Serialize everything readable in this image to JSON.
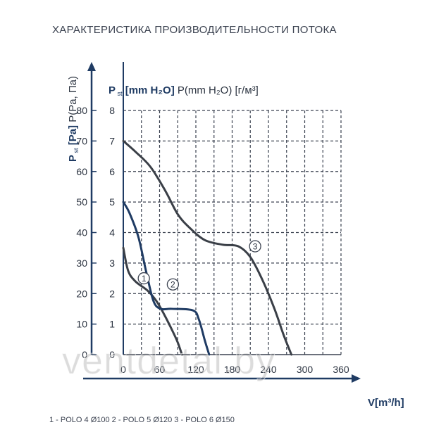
{
  "chart_data": {
    "type": "line",
    "title": "ХАРАКТЕРИСТИКА ПРОИЗВОДИТЕЛЬНОСТИ ПОТОКА",
    "xlabel": "V[m³/h]",
    "ylabel_pa_main": "P",
    "ylabel_pa_sub": "st",
    "ylabel_pa_unit": "[Pa]",
    "ylabel_pa_extra": "P(Pa, Па)",
    "ylabel_mm_main": "P",
    "ylabel_mm_sub": "st",
    "ylabel_mm_unit": "[mm H₂O]",
    "ylabel_mm_extra": "P(mm H₂O) [г/м³]",
    "xlim": [
      0,
      360
    ],
    "ylim_pa": [
      0,
      80
    ],
    "ylim_mm": [
      0,
      8
    ],
    "x_ticks": [
      "0",
      "60",
      "120",
      "180",
      "240",
      "300",
      "360"
    ],
    "y_ticks_pa": [
      "0",
      "10",
      "20",
      "30",
      "40",
      "50",
      "60",
      "70",
      "80"
    ],
    "y_ticks_mm": [
      "0",
      "1",
      "2",
      "3",
      "4",
      "5",
      "6",
      "7",
      "8"
    ],
    "grid": "dashed",
    "series": [
      {
        "marker": "1",
        "color": "#3a3f47",
        "points": [
          [
            0,
            3.5
          ],
          [
            8,
            2.75
          ],
          [
            20,
            2.4
          ],
          [
            40,
            2.1
          ],
          [
            55,
            1.75
          ],
          [
            68,
            1.3
          ],
          [
            82,
            0.75
          ],
          [
            90,
            0.4
          ],
          [
            97,
            0.0
          ]
        ]
      },
      {
        "marker": "2",
        "color": "#1f3b63",
        "points": [
          [
            0,
            5.0
          ],
          [
            10,
            4.65
          ],
          [
            25,
            3.85
          ],
          [
            38,
            2.7
          ],
          [
            50,
            1.75
          ],
          [
            62,
            1.5
          ],
          [
            80,
            1.5
          ],
          [
            115,
            1.45
          ],
          [
            125,
            1.15
          ],
          [
            135,
            0.45
          ],
          [
            142,
            0.0
          ]
        ]
      },
      {
        "marker": "3",
        "color": "#3a3f47",
        "points": [
          [
            0,
            7.0
          ],
          [
            20,
            6.65
          ],
          [
            45,
            6.15
          ],
          [
            70,
            5.35
          ],
          [
            90,
            4.6
          ],
          [
            110,
            4.15
          ],
          [
            135,
            3.75
          ],
          [
            165,
            3.6
          ],
          [
            190,
            3.55
          ],
          [
            210,
            3.2
          ],
          [
            230,
            2.45
          ],
          [
            250,
            1.5
          ],
          [
            265,
            0.65
          ],
          [
            278,
            0.0
          ]
        ]
      }
    ],
    "marker_positions": {
      "1": [
        34,
        2.5
      ],
      "2": [
        82,
        2.3
      ],
      "3": [
        218,
        3.55
      ]
    }
  },
  "legend_text": "1 - POLO 4 Ø100   2 - POLO 5 Ø120   3 - POLO 6 Ø150",
  "watermark": "ventdetal.by"
}
